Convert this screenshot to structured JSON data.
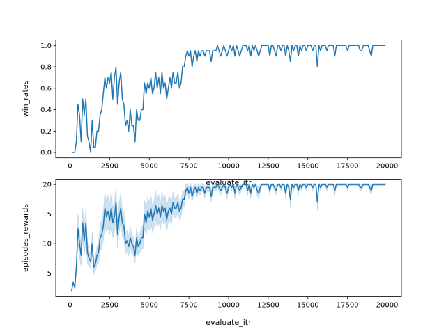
{
  "colors": {
    "line": "#1f77b4",
    "band": "#1f77b4",
    "axes": "#000000",
    "background": "#ffffff"
  },
  "chart_data": [
    {
      "type": "line",
      "xlabel": "evaluate_itr",
      "ylabel": "win_rates",
      "xlim": [
        -900,
        20900
      ],
      "ylim": [
        -0.05,
        1.05
      ],
      "xticks": [
        0,
        2500,
        5000,
        7500,
        10000,
        12500,
        15000,
        17500,
        20000
      ],
      "yticks": [
        0.0,
        0.2,
        0.4,
        0.6,
        0.8,
        1.0
      ],
      "xtick_labels": [
        "0",
        "2500",
        "5000",
        "7500",
        "10000",
        "12500",
        "15000",
        "17500",
        "20000"
      ],
      "ytick_labels": [
        "0.0",
        "0.2",
        "0.4",
        "0.6",
        "0.8",
        "1.0"
      ],
      "grid": false,
      "series": [
        {
          "x": [
            100,
            200,
            300,
            400,
            500,
            600,
            700,
            800,
            900,
            1000,
            1100,
            1200,
            1300,
            1400,
            1500,
            1600,
            1700,
            1800,
            1900,
            2000,
            2100,
            2200,
            2300,
            2400,
            2500,
            2600,
            2700,
            2800,
            2900,
            3000,
            3100,
            3200,
            3300,
            3400,
            3500,
            3600,
            3700,
            3800,
            3900,
            4000,
            4100,
            4200,
            4300,
            4400,
            4500,
            4600,
            4700,
            4800,
            4900,
            5000,
            5100,
            5200,
            5300,
            5400,
            5500,
            5600,
            5700,
            5800,
            5900,
            6000,
            6100,
            6200,
            6300,
            6400,
            6500,
            6600,
            6700,
            6800,
            6900,
            7000,
            7100,
            7200,
            7300,
            7400,
            7500,
            7600,
            7700,
            7800,
            7900,
            8000,
            8100,
            8200,
            8300,
            8400,
            8500,
            8600,
            8700,
            8800,
            8900,
            9000,
            9100,
            9200,
            9300,
            9400,
            9500,
            9600,
            9700,
            9800,
            9900,
            10000,
            10100,
            10200,
            10300,
            10400,
            10500,
            10600,
            10700,
            10800,
            10900,
            11000,
            11100,
            11200,
            11300,
            11400,
            11500,
            11600,
            11700,
            11800,
            11900,
            12000,
            12100,
            12200,
            12300,
            12400,
            12500,
            12600,
            12700,
            12800,
            12900,
            13000,
            13100,
            13200,
            13300,
            13400,
            13500,
            13600,
            13700,
            13800,
            13900,
            14000,
            14100,
            14200,
            14300,
            14400,
            14500,
            14600,
            14700,
            14800,
            14900,
            15000,
            15100,
            15200,
            15300,
            15400,
            15500,
            15600,
            15700,
            15800,
            15900,
            16000,
            16100,
            16200,
            16300,
            16400,
            16500,
            16600,
            16700,
            16800,
            16900,
            17000,
            17100,
            17200,
            17300,
            17400,
            17500,
            17600,
            17700,
            17800,
            17900,
            18000,
            18100,
            18200,
            18300,
            18400,
            18500,
            18600,
            18700,
            18800,
            18900,
            19000,
            19100,
            19200,
            19300,
            19400,
            19500,
            19600,
            19700,
            19800,
            19900
          ],
          "y": [
            0.0,
            0.0,
            0.0,
            0.1,
            0.45,
            0.35,
            0.1,
            0.5,
            0.35,
            0.5,
            0.15,
            0.1,
            0.0,
            0.3,
            0.05,
            0.05,
            0.2,
            0.2,
            0.35,
            0.4,
            0.55,
            0.7,
            0.6,
            0.7,
            0.65,
            0.75,
            0.5,
            0.7,
            0.8,
            0.45,
            0.65,
            0.75,
            0.5,
            0.45,
            0.25,
            0.3,
            0.2,
            0.4,
            0.25,
            0.25,
            0.1,
            0.4,
            0.3,
            0.3,
            0.4,
            0.4,
            0.65,
            0.55,
            0.65,
            0.6,
            0.7,
            0.55,
            0.6,
            0.75,
            0.6,
            0.7,
            0.55,
            0.75,
            0.6,
            0.65,
            0.5,
            0.6,
            0.7,
            0.6,
            0.75,
            0.65,
            0.65,
            0.75,
            0.6,
            0.65,
            0.8,
            0.8,
            0.9,
            0.95,
            0.9,
            0.95,
            0.8,
            0.9,
            0.95,
            0.85,
            0.95,
            0.9,
            0.95,
            0.95,
            0.9,
            0.95,
            0.95,
            0.95,
            0.85,
            0.95,
            0.95,
            0.95,
            1.0,
            0.95,
            0.9,
            0.95,
            1.0,
            0.95,
            0.9,
            0.95,
            1.0,
            0.95,
            1.0,
            0.9,
            1.0,
            0.95,
            0.9,
            0.95,
            1.0,
            1.0,
            1.0,
            0.95,
            1.0,
            0.9,
            1.0,
            0.95,
            1.0,
            0.95,
            0.9,
            0.95,
            1.0,
            1.0,
            1.0,
            1.0,
            1.0,
            0.9,
            1.0,
            1.0,
            0.95,
            0.9,
            1.0,
            1.0,
            0.95,
            1.0,
            1.0,
            0.9,
            1.0,
            0.95,
            0.85,
            1.0,
            0.95,
            1.0,
            1.0,
            0.9,
            1.0,
            0.95,
            1.0,
            1.0,
            0.95,
            1.0,
            1.0,
            1.0,
            0.95,
            1.0,
            1.0,
            0.8,
            1.0,
            0.95,
            1.0,
            1.0,
            1.0,
            0.95,
            1.0,
            1.0,
            1.0,
            1.0,
            0.9,
            1.0,
            1.0,
            1.0,
            1.0,
            1.0,
            1.0,
            1.0,
            0.95,
            1.0,
            1.0,
            1.0,
            1.0,
            1.0,
            1.0,
            1.0,
            0.95,
            0.95,
            1.0,
            1.0,
            1.0,
            1.0,
            0.95,
            0.9,
            1.0,
            1.0,
            1.0,
            1.0,
            1.0,
            1.0,
            1.0,
            1.0,
            1.0
          ]
        }
      ]
    },
    {
      "type": "line",
      "xlabel": "evaluate_itr",
      "ylabel": "episodes_rewards",
      "xlim": [
        -900,
        20900
      ],
      "ylim": [
        1.0,
        20.9
      ],
      "xticks": [
        0,
        2500,
        5000,
        7500,
        10000,
        12500,
        15000,
        17500,
        20000
      ],
      "yticks": [
        5,
        10,
        15,
        20
      ],
      "xtick_labels": [
        "0",
        "2500",
        "5000",
        "7500",
        "10000",
        "12500",
        "15000",
        "17500",
        "20000"
      ],
      "ytick_labels": [
        "5",
        "10",
        "15",
        "20"
      ],
      "grid": false,
      "series": [
        {
          "x": [
            100,
            200,
            300,
            400,
            500,
            600,
            700,
            800,
            900,
            1000,
            1100,
            1200,
            1300,
            1400,
            1500,
            1600,
            1700,
            1800,
            1900,
            2000,
            2100,
            2200,
            2300,
            2400,
            2500,
            2600,
            2700,
            2800,
            2900,
            3000,
            3100,
            3200,
            3300,
            3400,
            3500,
            3600,
            3700,
            3800,
            3900,
            4000,
            4100,
            4200,
            4300,
            4400,
            4500,
            4600,
            4700,
            4800,
            4900,
            5000,
            5100,
            5200,
            5300,
            5400,
            5500,
            5600,
            5700,
            5800,
            5900,
            6000,
            6100,
            6200,
            6300,
            6400,
            6500,
            6600,
            6700,
            6800,
            6900,
            7000,
            7100,
            7200,
            7300,
            7400,
            7500,
            7600,
            7700,
            7800,
            7900,
            8000,
            8100,
            8200,
            8300,
            8400,
            8500,
            8600,
            8700,
            8800,
            8900,
            9000,
            9100,
            9200,
            9300,
            9400,
            9500,
            9600,
            9700,
            9800,
            9900,
            10000,
            10100,
            10200,
            10300,
            10400,
            10500,
            10600,
            10700,
            10800,
            10900,
            11000,
            11100,
            11200,
            11300,
            11400,
            11500,
            11600,
            11700,
            11800,
            11900,
            12000,
            12100,
            12200,
            12300,
            12400,
            12500,
            12600,
            12700,
            12800,
            12900,
            13000,
            13100,
            13200,
            13300,
            13400,
            13500,
            13600,
            13700,
            13800,
            13900,
            14000,
            14100,
            14200,
            14300,
            14400,
            14500,
            14600,
            14700,
            14800,
            14900,
            15000,
            15100,
            15200,
            15300,
            15400,
            15500,
            15600,
            15700,
            15800,
            15900,
            16000,
            16100,
            16200,
            16300,
            16400,
            16500,
            16600,
            16700,
            16800,
            16900,
            17000,
            17100,
            17200,
            17300,
            17400,
            17500,
            17600,
            17700,
            17800,
            17900,
            18000,
            18100,
            18200,
            18300,
            18400,
            18500,
            18600,
            18700,
            18800,
            18900,
            19000,
            19100,
            19200,
            19300,
            19400,
            19500,
            19600,
            19700,
            19800,
            19900
          ],
          "y": [
            2.0,
            3.5,
            2.5,
            6.0,
            12.5,
            10.0,
            8.0,
            13.5,
            10.5,
            13.5,
            8.5,
            7.5,
            7.0,
            10.0,
            6.0,
            6.5,
            8.0,
            8.5,
            11.0,
            11.5,
            13.0,
            16.0,
            14.5,
            15.5,
            14.0,
            16.0,
            13.5,
            14.5,
            17.0,
            11.5,
            14.5,
            16.0,
            13.5,
            13.0,
            10.0,
            10.5,
            9.5,
            11.0,
            10.0,
            9.5,
            8.0,
            11.0,
            9.5,
            10.0,
            11.0,
            11.0,
            15.0,
            13.5,
            15.5,
            14.5,
            16.0,
            14.0,
            15.0,
            16.5,
            15.0,
            16.0,
            14.5,
            16.5,
            15.5,
            16.0,
            14.0,
            15.5,
            16.0,
            15.0,
            17.0,
            16.0,
            16.0,
            17.0,
            15.5,
            16.0,
            17.5,
            17.5,
            19.0,
            19.5,
            18.5,
            19.5,
            18.0,
            19.0,
            19.5,
            18.5,
            19.5,
            19.0,
            19.5,
            19.5,
            18.5,
            19.5,
            19.5,
            19.5,
            18.0,
            19.5,
            19.5,
            19.5,
            20.0,
            19.5,
            19.0,
            19.5,
            20.0,
            19.5,
            18.5,
            19.5,
            20.0,
            19.5,
            20.0,
            18.5,
            20.0,
            19.5,
            19.0,
            19.5,
            20.0,
            20.0,
            20.0,
            19.0,
            20.0,
            18.5,
            20.0,
            19.5,
            20.0,
            19.0,
            18.5,
            19.5,
            20.0,
            20.0,
            20.0,
            20.0,
            20.0,
            19.0,
            20.0,
            20.0,
            19.5,
            19.0,
            20.0,
            20.0,
            19.5,
            20.0,
            20.0,
            18.5,
            20.0,
            19.5,
            17.5,
            20.0,
            19.5,
            20.0,
            20.0,
            19.0,
            20.0,
            19.5,
            20.0,
            20.0,
            19.5,
            20.0,
            20.0,
            20.0,
            19.5,
            20.0,
            20.0,
            17.0,
            20.0,
            19.5,
            20.0,
            20.0,
            20.0,
            19.5,
            20.0,
            20.0,
            20.0,
            20.0,
            19.0,
            20.0,
            20.0,
            20.0,
            20.0,
            20.0,
            20.0,
            20.0,
            19.5,
            20.0,
            20.0,
            20.0,
            20.0,
            20.0,
            20.0,
            20.0,
            19.5,
            19.5,
            20.0,
            20.0,
            20.0,
            20.0,
            19.5,
            19.0,
            20.0,
            20.0,
            20.0,
            20.0,
            20.0,
            20.0,
            20.0,
            20.0,
            20.0
          ],
          "band_halfwidth": [
            0.2,
            0.2,
            0.3,
            1.0,
            2.5,
            2.5,
            1.8,
            2.5,
            2.5,
            2.5,
            1.8,
            1.5,
            1.2,
            2.0,
            1.2,
            1.2,
            1.5,
            1.8,
            2.2,
            2.5,
            2.5,
            2.8,
            2.6,
            2.8,
            2.5,
            2.8,
            2.5,
            2.6,
            2.8,
            2.2,
            2.5,
            2.6,
            2.3,
            2.3,
            1.8,
            1.8,
            1.6,
            1.9,
            1.6,
            1.6,
            1.3,
            1.9,
            1.6,
            1.6,
            1.9,
            1.9,
            2.4,
            2.2,
            2.4,
            2.3,
            2.4,
            2.2,
            2.3,
            2.4,
            2.3,
            2.3,
            2.2,
            2.3,
            2.2,
            2.2,
            2.0,
            2.0,
            2.0,
            1.9,
            1.8,
            1.7,
            1.6,
            1.6,
            1.5,
            1.5,
            1.4,
            1.3,
            1.0,
            0.8,
            1.0,
            0.8,
            1.0,
            0.9,
            0.7,
            0.9,
            0.7,
            0.8,
            0.7,
            0.7,
            0.9,
            0.7,
            0.7,
            0.7,
            1.0,
            0.7,
            0.6,
            0.6,
            0.2,
            0.6,
            0.8,
            0.6,
            0.2,
            0.6,
            1.0,
            0.6,
            0.2,
            0.6,
            0.2,
            1.0,
            0.2,
            0.6,
            0.8,
            0.6,
            0.2,
            0.2,
            0.2,
            0.8,
            0.2,
            1.0,
            0.2,
            0.6,
            0.2,
            0.8,
            1.0,
            0.6,
            0.2,
            0.2,
            0.2,
            0.2,
            0.2,
            0.8,
            0.2,
            0.2,
            0.6,
            0.8,
            0.2,
            0.2,
            0.6,
            0.2,
            0.2,
            1.0,
            0.2,
            0.6,
            1.3,
            0.2,
            0.6,
            0.2,
            0.2,
            0.8,
            0.2,
            0.6,
            0.2,
            0.2,
            0.6,
            0.2,
            0.2,
            0.2,
            0.6,
            0.2,
            0.2,
            1.4,
            0.2,
            0.6,
            0.2,
            0.2,
            0.2,
            0.6,
            0.2,
            0.2,
            0.2,
            0.2,
            0.8,
            0.2,
            0.2,
            0.2,
            0.2,
            0.2,
            0.2,
            0.2,
            0.6,
            0.2,
            0.2,
            0.2,
            0.2,
            0.2,
            0.2,
            0.2,
            0.6,
            0.6,
            0.2,
            0.2,
            0.2,
            0.2,
            0.6,
            0.8,
            0.2,
            0.2,
            0.2,
            0.2,
            0.2,
            0.2,
            0.2,
            0.2,
            0.2
          ]
        }
      ]
    }
  ]
}
